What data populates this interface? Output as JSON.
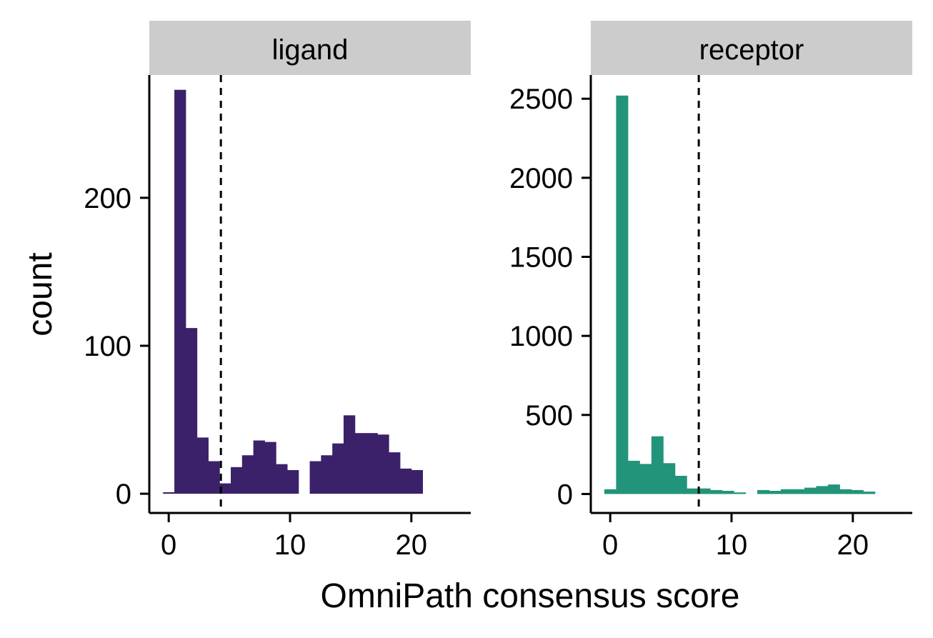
{
  "chart_data": {
    "type": "bar",
    "xlabel": "OmniPath consensus score",
    "ylabel": "count",
    "colors": {
      "ligand": "#3a2169",
      "receptor": "#22947a",
      "strip": "#cccccc"
    },
    "panels": [
      {
        "title": "ligand",
        "color": "#3a2169",
        "xlim": [
          -1.6,
          24.9
        ],
        "ylim": [
          -13,
          283
        ],
        "xticks": [
          0,
          10,
          20
        ],
        "yticks": [
          0,
          100,
          200
        ],
        "threshold": 4.3,
        "bin_width": 0.93,
        "bins": [
          {
            "x": 0.0,
            "count": 1
          },
          {
            "x": 0.93,
            "count": 273
          },
          {
            "x": 1.86,
            "count": 112
          },
          {
            "x": 2.79,
            "count": 38
          },
          {
            "x": 3.72,
            "count": 22
          },
          {
            "x": 4.65,
            "count": 7
          },
          {
            "x": 5.58,
            "count": 18
          },
          {
            "x": 6.51,
            "count": 26
          },
          {
            "x": 7.44,
            "count": 36
          },
          {
            "x": 8.37,
            "count": 35
          },
          {
            "x": 9.3,
            "count": 20
          },
          {
            "x": 10.23,
            "count": 16
          },
          {
            "x": 11.16,
            "count": 0
          },
          {
            "x": 12.09,
            "count": 22
          },
          {
            "x": 13.02,
            "count": 26
          },
          {
            "x": 13.95,
            "count": 34
          },
          {
            "x": 14.88,
            "count": 53
          },
          {
            "x": 15.81,
            "count": 41
          },
          {
            "x": 16.74,
            "count": 41
          },
          {
            "x": 17.67,
            "count": 40
          },
          {
            "x": 18.6,
            "count": 28
          },
          {
            "x": 19.53,
            "count": 17
          },
          {
            "x": 20.46,
            "count": 16
          }
        ]
      },
      {
        "title": "receptor",
        "color": "#22947a",
        "xlim": [
          -1.6,
          24.9
        ],
        "ylim": [
          -120,
          2650
        ],
        "xticks": [
          0,
          10,
          20
        ],
        "yticks": [
          0,
          500,
          1000,
          1500,
          2000,
          2500
        ],
        "threshold": 7.3,
        "bin_width": 0.97,
        "bins": [
          {
            "x": 0.0,
            "count": 30
          },
          {
            "x": 0.97,
            "count": 2520
          },
          {
            "x": 1.94,
            "count": 210
          },
          {
            "x": 2.91,
            "count": 190
          },
          {
            "x": 3.88,
            "count": 365
          },
          {
            "x": 4.85,
            "count": 195
          },
          {
            "x": 5.82,
            "count": 115
          },
          {
            "x": 6.79,
            "count": 35
          },
          {
            "x": 7.76,
            "count": 35
          },
          {
            "x": 8.73,
            "count": 25
          },
          {
            "x": 9.7,
            "count": 20
          },
          {
            "x": 10.67,
            "count": 10
          },
          {
            "x": 11.64,
            "count": 0
          },
          {
            "x": 12.61,
            "count": 25
          },
          {
            "x": 13.58,
            "count": 20
          },
          {
            "x": 14.55,
            "count": 30
          },
          {
            "x": 15.52,
            "count": 30
          },
          {
            "x": 16.49,
            "count": 40
          },
          {
            "x": 17.46,
            "count": 50
          },
          {
            "x": 18.43,
            "count": 60
          },
          {
            "x": 19.4,
            "count": 30
          },
          {
            "x": 20.37,
            "count": 25
          },
          {
            "x": 21.34,
            "count": 15
          }
        ]
      }
    ]
  }
}
